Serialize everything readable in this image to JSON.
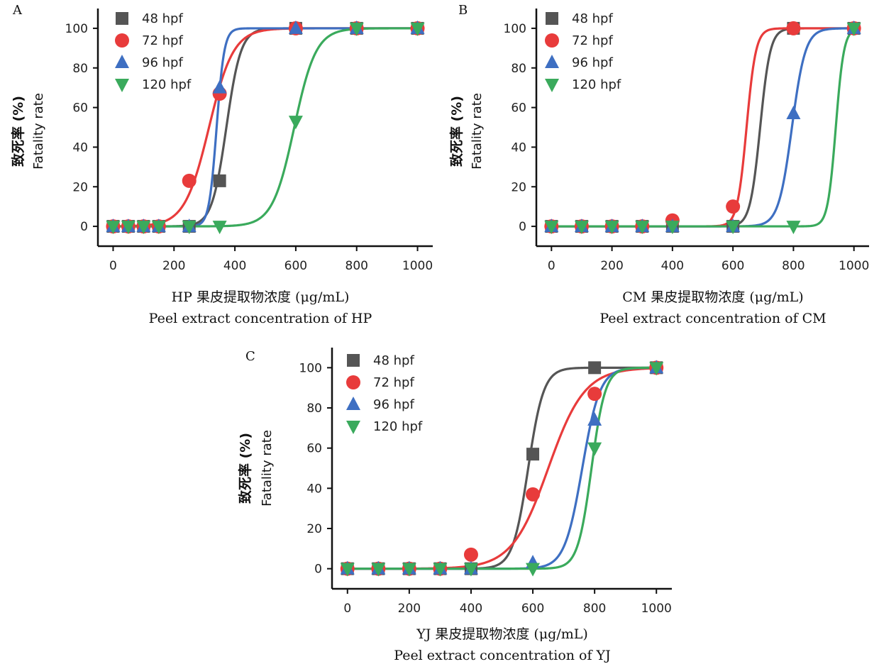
{
  "colors": {
    "48 hpf": "#555555",
    "72 hpf": "#e83b3b",
    "96 hpf": "#3e6fc2",
    "120 hpf": "#3aaa5c"
  },
  "chart_data": [
    {
      "panel": "A",
      "type": "scatter",
      "ylabel_cn": "致死率 (%)",
      "ylabel": "Fatality rate",
      "xlabel_cn": "HP 果皮提取物浓度 (μg/mL)",
      "xlabel": "Peel extract concentration of HP",
      "xlim": [
        -50,
        1050
      ],
      "ylim": [
        -10,
        110
      ],
      "xticks": [
        0,
        200,
        400,
        600,
        800,
        1000
      ],
      "yticks": [
        0,
        20,
        40,
        60,
        80,
        100
      ],
      "legend": "top-left",
      "series": [
        {
          "name": "48 hpf",
          "marker": "square",
          "x": [
            0,
            50,
            100,
            150,
            250,
            350,
            600,
            800,
            1000
          ],
          "y": [
            0,
            0,
            0,
            0,
            0,
            23,
            100,
            100,
            100
          ],
          "ec50": 372,
          "slope": 0.042
        },
        {
          "name": "72 hpf",
          "marker": "circle",
          "x": [
            0,
            50,
            100,
            150,
            250,
            350,
            600,
            800,
            1000
          ],
          "y": [
            0,
            0,
            0,
            0,
            23,
            67,
            100,
            100,
            100
          ],
          "ec50": 315,
          "slope": 0.025
        },
        {
          "name": "96 hpf",
          "marker": "triangle-up",
          "x": [
            0,
            50,
            100,
            150,
            250,
            350,
            600,
            800,
            1000
          ],
          "y": [
            0,
            0,
            0,
            0,
            0,
            70,
            100,
            100,
            100
          ],
          "ec50": 340,
          "slope": 0.08
        },
        {
          "name": "120 hpf",
          "marker": "triangle-down",
          "x": [
            0,
            50,
            100,
            150,
            250,
            350,
            600,
            800,
            1000
          ],
          "y": [
            0,
            0,
            0,
            0,
            0,
            0,
            53,
            100,
            100
          ],
          "ec50": 595,
          "slope": 0.028
        }
      ]
    },
    {
      "panel": "B",
      "type": "scatter",
      "ylabel_cn": "致死率 (%)",
      "ylabel": "Fatality rate",
      "xlabel_cn": "CM 果皮提取物浓度 (μg/mL)",
      "xlabel": "Peel extract concentration of CM",
      "xlim": [
        -50,
        1050
      ],
      "ylim": [
        -10,
        110
      ],
      "xticks": [
        0,
        200,
        400,
        600,
        800,
        1000
      ],
      "yticks": [
        0,
        20,
        40,
        60,
        80,
        100
      ],
      "legend": "top-left",
      "series": [
        {
          "name": "48 hpf",
          "marker": "square",
          "x": [
            0,
            100,
            200,
            300,
            400,
            600,
            800,
            1000
          ],
          "y": [
            0,
            0,
            0,
            0,
            0,
            0,
            100,
            100
          ],
          "ec50": 690,
          "slope": 0.06
        },
        {
          "name": "72 hpf",
          "marker": "circle",
          "x": [
            0,
            100,
            200,
            300,
            400,
            600,
            800,
            1000
          ],
          "y": [
            0,
            0,
            0,
            0,
            3,
            10,
            100,
            100
          ],
          "ec50": 645,
          "slope": 0.065
        },
        {
          "name": "96 hpf",
          "marker": "triangle-up",
          "x": [
            0,
            100,
            200,
            300,
            400,
            600,
            800,
            1000
          ],
          "y": [
            0,
            0,
            0,
            0,
            0,
            0,
            57,
            100
          ],
          "ec50": 795,
          "slope": 0.045
        },
        {
          "name": "120 hpf",
          "marker": "triangle-down",
          "x": [
            0,
            100,
            200,
            300,
            400,
            600,
            800,
            1000
          ],
          "y": [
            0,
            0,
            0,
            0,
            0,
            0,
            0,
            100
          ],
          "ec50": 940,
          "slope": 0.075
        }
      ]
    },
    {
      "panel": "C",
      "type": "scatter",
      "ylabel_cn": "致死率 (%)",
      "ylabel": "Fatality rate",
      "xlabel_cn": "YJ 果皮提取物浓度 (μg/mL)",
      "xlabel": "Peel extract concentration of YJ",
      "xlim": [
        -50,
        1050
      ],
      "ylim": [
        -10,
        110
      ],
      "xticks": [
        0,
        200,
        400,
        600,
        800,
        1000
      ],
      "yticks": [
        0,
        20,
        40,
        60,
        80,
        100
      ],
      "legend": "top-left",
      "series": [
        {
          "name": "48 hpf",
          "marker": "square",
          "x": [
            0,
            100,
            200,
            300,
            400,
            600,
            800,
            1000
          ],
          "y": [
            0,
            0,
            0,
            0,
            0,
            57,
            100,
            100
          ],
          "ec50": 585,
          "slope": 0.04
        },
        {
          "name": "72 hpf",
          "marker": "circle",
          "x": [
            0,
            100,
            200,
            300,
            400,
            600,
            800,
            1000
          ],
          "y": [
            0,
            0,
            0,
            0,
            7,
            37,
            87,
            100
          ],
          "ec50": 650,
          "slope": 0.017
        },
        {
          "name": "96 hpf",
          "marker": "triangle-up",
          "x": [
            0,
            100,
            200,
            300,
            400,
            600,
            800,
            1000
          ],
          "y": [
            0,
            0,
            0,
            0,
            0,
            3,
            74,
            100
          ],
          "ec50": 760,
          "slope": 0.035
        },
        {
          "name": "120 hpf",
          "marker": "triangle-down",
          "x": [
            0,
            100,
            200,
            300,
            400,
            600,
            800,
            1000
          ],
          "y": [
            0,
            0,
            0,
            0,
            0,
            0,
            60,
            100
          ],
          "ec50": 790,
          "slope": 0.045
        }
      ]
    }
  ]
}
